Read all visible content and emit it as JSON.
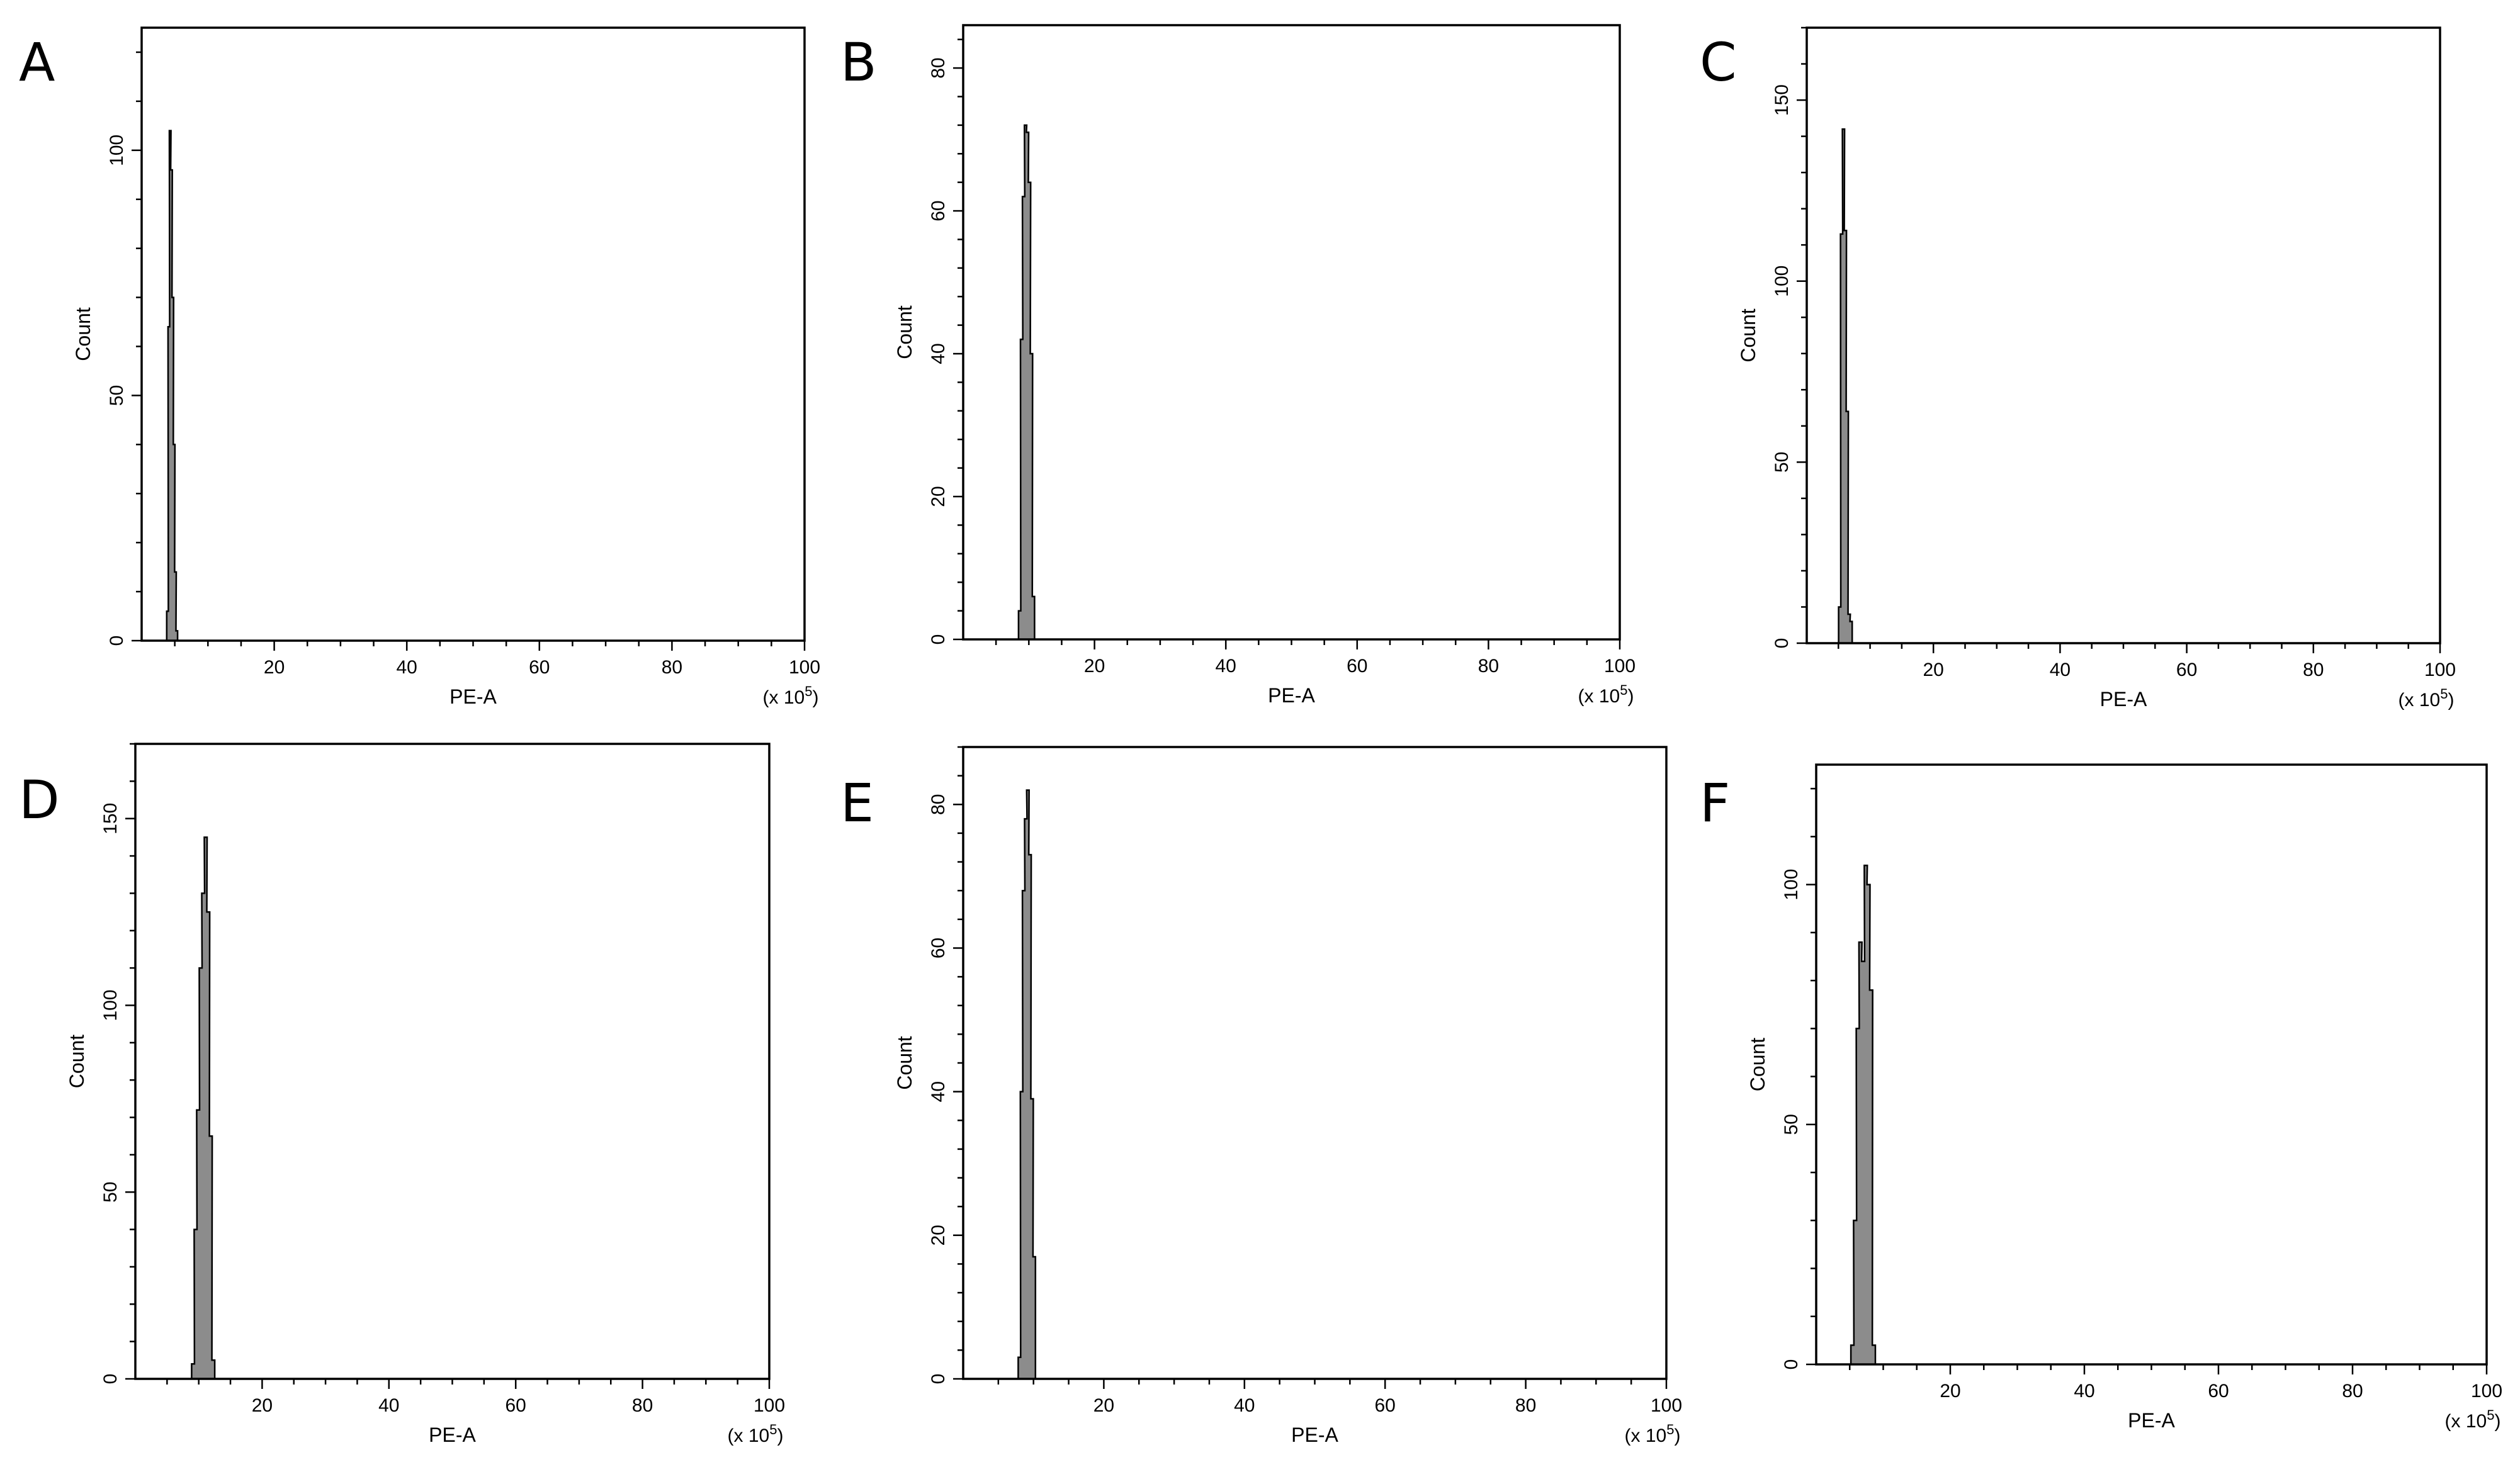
{
  "chart_data": [
    {
      "type": "histogram",
      "panel_label": "A",
      "xlabel": "PE-A",
      "xunit": "(x 10^5)",
      "ylabel": "Count",
      "xlim": [
        0,
        100
      ],
      "ylim": [
        0,
        125
      ],
      "x_ticks": [
        20,
        40,
        60,
        80,
        100
      ],
      "y_ticks": [
        0,
        50,
        100
      ],
      "x": [
        3.9,
        4.1,
        4.3,
        4.5,
        4.7,
        4.9,
        5.1,
        5.3
      ],
      "values": [
        6,
        64,
        104,
        96,
        70,
        40,
        14,
        2
      ],
      "color": "#8c8c8c"
    },
    {
      "type": "histogram",
      "panel_label": "B",
      "xlabel": "PE-A",
      "xunit": "(x 10^5)",
      "ylabel": "Count",
      "xlim": [
        0,
        100
      ],
      "ylim": [
        0,
        86
      ],
      "x_ticks": [
        20,
        40,
        60,
        80,
        100
      ],
      "y_ticks": [
        0,
        20,
        40,
        60,
        80
      ],
      "x": [
        8.6,
        8.9,
        9.2,
        9.5,
        9.8,
        10.1,
        10.4,
        10.7
      ],
      "values": [
        4,
        42,
        62,
        72,
        71,
        64,
        40,
        6
      ],
      "color": "#8c8c8c"
    },
    {
      "type": "histogram",
      "panel_label": "C",
      "xlabel": "PE-A",
      "xunit": "(x 10^5)",
      "ylabel": "Count",
      "xlim": [
        0,
        100
      ],
      "ylim": [
        0,
        170
      ],
      "x_ticks": [
        20,
        40,
        60,
        80,
        100
      ],
      "y_ticks": [
        0,
        50,
        100,
        150
      ],
      "x": [
        5.2,
        5.5,
        5.8,
        6.1,
        6.4,
        6.7,
        7.0
      ],
      "values": [
        10,
        113,
        142,
        114,
        64,
        8,
        6
      ],
      "color": "#8c8c8c"
    },
    {
      "type": "histogram",
      "panel_label": "D",
      "xlabel": "PE-A",
      "xunit": "(x 10^5)",
      "ylabel": "Count",
      "xlim": [
        0,
        100
      ],
      "ylim": [
        0,
        170
      ],
      "x_ticks": [
        20,
        40,
        60,
        80,
        100
      ],
      "y_ticks": [
        0,
        50,
        100,
        150
      ],
      "x": [
        9.1,
        9.5,
        9.9,
        10.3,
        10.7,
        11.1,
        11.5,
        11.9,
        12.3
      ],
      "values": [
        4,
        40,
        72,
        110,
        130,
        145,
        125,
        65,
        5
      ],
      "color": "#8c8c8c"
    },
    {
      "type": "histogram",
      "panel_label": "E",
      "xlabel": "PE-A",
      "xunit": "(x 10^5)",
      "ylabel": "Count",
      "xlim": [
        0,
        100
      ],
      "ylim": [
        0,
        88
      ],
      "x_ticks": [
        20,
        40,
        60,
        80,
        100
      ],
      "y_ticks": [
        0,
        20,
        40,
        60,
        80
      ],
      "x": [
        8.0,
        8.3,
        8.6,
        8.9,
        9.2,
        9.5,
        9.8,
        10.1
      ],
      "values": [
        3,
        40,
        68,
        78,
        82,
        73,
        39,
        17
      ],
      "color": "#8c8c8c"
    },
    {
      "type": "histogram",
      "panel_label": "F",
      "xlabel": "PE-A",
      "xunit": "(x 10^5)",
      "ylabel": "Count",
      "xlim": [
        0,
        100
      ],
      "ylim": [
        0,
        125
      ],
      "x_ticks": [
        20,
        40,
        60,
        80,
        100
      ],
      "y_ticks": [
        0,
        50,
        100
      ],
      "x": [
        5.4,
        5.8,
        6.2,
        6.6,
        7.0,
        7.4,
        7.8,
        8.2,
        8.6
      ],
      "values": [
        4,
        30,
        70,
        88,
        84,
        104,
        100,
        78,
        4
      ],
      "color": "#8c8c8c"
    }
  ]
}
